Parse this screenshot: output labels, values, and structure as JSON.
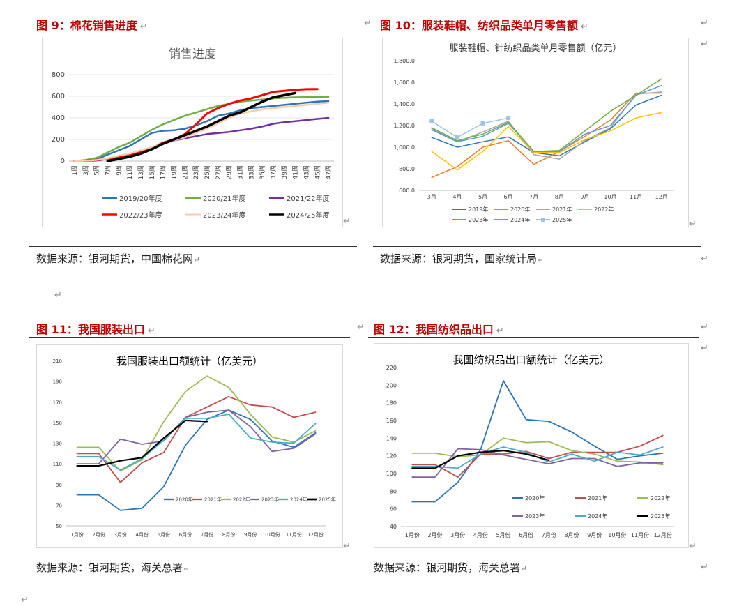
{
  "return_mark": "↵",
  "figures": [
    {
      "title": "图 9：棉花销售进度",
      "source": "数据来源：银河期货，中国棉花网",
      "chart_data": {
        "type": "line",
        "title": "销售进度",
        "ylim": [
          0,
          800
        ],
        "yticks": [
          "0",
          "200",
          "400",
          "600",
          "800"
        ],
        "categories": [
          "1周",
          "3周",
          "5周",
          "7周",
          "9周",
          "11周",
          "13周",
          "15周",
          "17周",
          "19周",
          "21周",
          "23周",
          "25周",
          "27周",
          "29周",
          "31周",
          "33周",
          "35周",
          "37周",
          "39周",
          "41周",
          "43周",
          "45周",
          "47周"
        ],
        "legend_rows": [
          [
            0,
            1,
            2
          ],
          [
            3,
            4,
            5
          ]
        ],
        "series": [
          {
            "name": "2019/20年度",
            "color": "#2e75b6",
            "width": 2.5,
            "values": [
              0,
              5,
              15,
              60,
              100,
              140,
              200,
              260,
              280,
              285,
              300,
              330,
              370,
              420,
              440,
              470,
              490,
              500,
              510,
              520,
              530,
              540,
              550,
              555
            ]
          },
          {
            "name": "2020/21年度",
            "color": "#70ad47",
            "width": 2.5,
            "values": [
              0,
              10,
              30,
              80,
              130,
              170,
              230,
              290,
              340,
              380,
              420,
              450,
              480,
              510,
              530,
              550,
              560,
              570,
              580,
              585,
              590,
              592,
              594,
              595
            ]
          },
          {
            "name": "2021/22年度",
            "color": "#7030a0",
            "width": 2.5,
            "values": [
              0,
              2,
              5,
              20,
              40,
              60,
              90,
              120,
              160,
              190,
              210,
              230,
              250,
              260,
              270,
              285,
              300,
              320,
              345,
              360,
              370,
              380,
              390,
              400
            ]
          },
          {
            "name": "2022/23年度",
            "color": "#ff0000",
            "width": 3,
            "values": [
              0,
              3,
              10,
              20,
              40,
              60,
              90,
              120,
              170,
              200,
              250,
              340,
              440,
              490,
              530,
              560,
              580,
              610,
              640,
              650,
              660,
              665,
              666,
              null
            ]
          },
          {
            "name": "2023/24年度",
            "color": "#f8cbad",
            "width": 2.5,
            "values": [
              0,
              3,
              10,
              25,
              50,
              70,
              100,
              130,
              160,
              190,
              220,
              260,
              300,
              350,
              400,
              440,
              460,
              480,
              490,
              500,
              510,
              520,
              530,
              540
            ]
          },
          {
            "name": "2024/25年度",
            "color": "#000000",
            "width": 3.5,
            "values": [
              null,
              null,
              null,
              0,
              20,
              40,
              70,
              110,
              160,
              200,
              240,
              280,
              320,
              370,
              420,
              450,
              500,
              550,
              590,
              610,
              630,
              null,
              null,
              null
            ]
          }
        ]
      }
    },
    {
      "title": "图 10：服装鞋帽、纺织品类单月零售额",
      "source": "数据来源：银河期货，国家统计局",
      "chart_data": {
        "type": "line",
        "title": "服装鞋帽、针纺织品类单月零售额（亿元）",
        "ylim": [
          600,
          1800
        ],
        "yticks": [
          "600.0",
          "800.0",
          "1,000.0",
          "1,200.0",
          "1,400.0",
          "1,600.0",
          "1,800.0"
        ],
        "categories": [
          "3月",
          "4月",
          "5月",
          "6月",
          "7月",
          "8月",
          "9月",
          "10月",
          "11月",
          "12月"
        ],
        "legend_rows": [
          [
            0,
            1,
            2,
            3
          ],
          [
            4,
            5,
            6
          ]
        ],
        "series": [
          {
            "name": "2019年",
            "color": "#2e75b6",
            "width": 1.5,
            "values": [
              1090,
              1000,
              1050,
              1095,
              950,
              920,
              1050,
              1170,
              1390,
              1480
            ]
          },
          {
            "name": "2020年",
            "color": "#ed7d31",
            "width": 1.5,
            "values": [
              720,
              820,
              1000,
              1060,
              840,
              960,
              1100,
              1250,
              1500,
              1500
            ]
          },
          {
            "name": "2021年",
            "color": "#a5a5a5",
            "width": 1.5,
            "values": [
              1170,
              1050,
              1140,
              1240,
              930,
              890,
              1060,
              1180,
              1490,
              1510
            ]
          },
          {
            "name": "2022年",
            "color": "#ffc000",
            "width": 1.5,
            "values": [
              960,
              790,
              960,
              1190,
              950,
              950,
              1070,
              1150,
              1270,
              1320
            ]
          },
          {
            "name": "2023年",
            "color": "#5b9bd5",
            "width": 1.5,
            "values": [
              1160,
              1050,
              1100,
              1220,
              960,
              960,
              1120,
              1200,
              1480,
              1570
            ]
          },
          {
            "name": "2024年",
            "color": "#70ad47",
            "width": 1.5,
            "values": [
              1180,
              1060,
              1120,
              1230,
              960,
              970,
              1150,
              1330,
              1480,
              1630
            ]
          },
          {
            "name": "2025年",
            "color": "#9dc3e6",
            "width": 1.5,
            "marker": "square",
            "values": [
              1240,
              1090,
              1220,
              1270,
              null,
              null,
              null,
              null,
              null,
              null
            ]
          }
        ]
      }
    },
    {
      "title": "图 11：我国服装出口",
      "source": "数据来源：银河期货，海关总署",
      "chart_data": {
        "type": "line",
        "title": "我国服装出口额统计（亿美元）",
        "ylim": [
          50,
          210
        ],
        "yticks": [
          "50",
          "70",
          "90",
          "110",
          "130",
          "150",
          "170",
          "190",
          "210"
        ],
        "categories": [
          "1月份",
          "2月份",
          "3月份",
          "4月份",
          "5月份",
          "6月份",
          "7月份",
          "8月份",
          "9月份",
          "10月份",
          "11月份",
          "12月份"
        ],
        "legend_rows": [
          [
            0,
            1,
            2,
            3,
            4,
            5
          ]
        ],
        "series": [
          {
            "name": "2020年",
            "color": "#2e75b6",
            "width": 1.8,
            "values": [
              80,
              80,
              65,
              67,
              88,
              128,
              153,
              162,
              153,
              132,
              126,
              140
            ]
          },
          {
            "name": "2021年",
            "color": "#c0504d",
            "width": 1.8,
            "values": [
              120,
              120,
              92,
              111,
              121,
              155,
              165,
              175,
              167,
              165,
              155,
              160
            ]
          },
          {
            "name": "2022年",
            "color": "#9bbb59",
            "width": 1.8,
            "values": [
              126,
              126,
              103,
              114,
              151,
              180,
              195,
              184,
              158,
              136,
              131,
              142
            ]
          },
          {
            "name": "2023年",
            "color": "#8064a2",
            "width": 1.8,
            "values": [
              110,
              110,
              134,
              129,
              132,
              155,
              160,
              162,
              146,
              122,
              125,
              139
            ]
          },
          {
            "name": "2024年",
            "color": "#4bacc6",
            "width": 1.8,
            "values": [
              117,
              117,
              104,
              115,
              133,
              154,
              154,
              158,
              135,
              131,
              130,
              149
            ]
          },
          {
            "name": "2025年",
            "color": "#000000",
            "width": 2.2,
            "values": [
              108,
              108,
              113,
              116,
              135,
              152,
              151,
              null,
              null,
              null,
              null,
              null
            ]
          }
        ]
      }
    },
    {
      "title": "图 12：我国纺织品出口",
      "source": "数据来源：银河期货，海关总署",
      "chart_data": {
        "type": "line",
        "title": "我国纺织品出口额统计（亿美元）",
        "ylim": [
          40,
          220
        ],
        "yticks": [
          "40",
          "60",
          "80",
          "100",
          "120",
          "140",
          "160",
          "180",
          "200",
          "220"
        ],
        "categories": [
          "1月份",
          "2月份",
          "3月份",
          "4月份",
          "5月份",
          "6月份",
          "7月份",
          "8月份",
          "9月份",
          "10月份",
          "11月份",
          "12月份"
        ],
        "legend_rows": [
          [
            0,
            1,
            2
          ],
          [
            3,
            4,
            5
          ]
        ],
        "series": [
          {
            "name": "2020年",
            "color": "#2e75b6",
            "width": 1.8,
            "values": [
              68,
              68,
              90,
              127,
              205,
              161,
              159,
              147,
              131,
              116,
              120,
              123
            ]
          },
          {
            "name": "2021年",
            "color": "#c0504d",
            "width": 1.8,
            "values": [
              110,
              110,
              96,
              122,
              122,
              125,
              117,
              124,
              124,
              124,
              131,
              143
            ]
          },
          {
            "name": "2022年",
            "color": "#9bbb59",
            "width": 1.8,
            "values": [
              123,
              123,
              119,
              121,
              140,
              135,
              136,
              126,
              122,
              114,
              113,
              110
            ]
          },
          {
            "name": "2023年",
            "color": "#8064a2",
            "width": 1.8,
            "values": [
              96,
              96,
              128,
              127,
              121,
              116,
              111,
              117,
              117,
              108,
              112,
              112
            ]
          },
          {
            "name": "2024年",
            "color": "#4bacc6",
            "width": 1.8,
            "values": [
              108,
              108,
              106,
              122,
              130,
              124,
              113,
              122,
              114,
              124,
              121,
              130
            ]
          },
          {
            "name": "2025年",
            "color": "#000000",
            "width": 2.2,
            "values": [
              106,
              106,
              120,
              124,
              126,
              122,
              115,
              null,
              null,
              null,
              null,
              null
            ]
          }
        ]
      }
    }
  ]
}
